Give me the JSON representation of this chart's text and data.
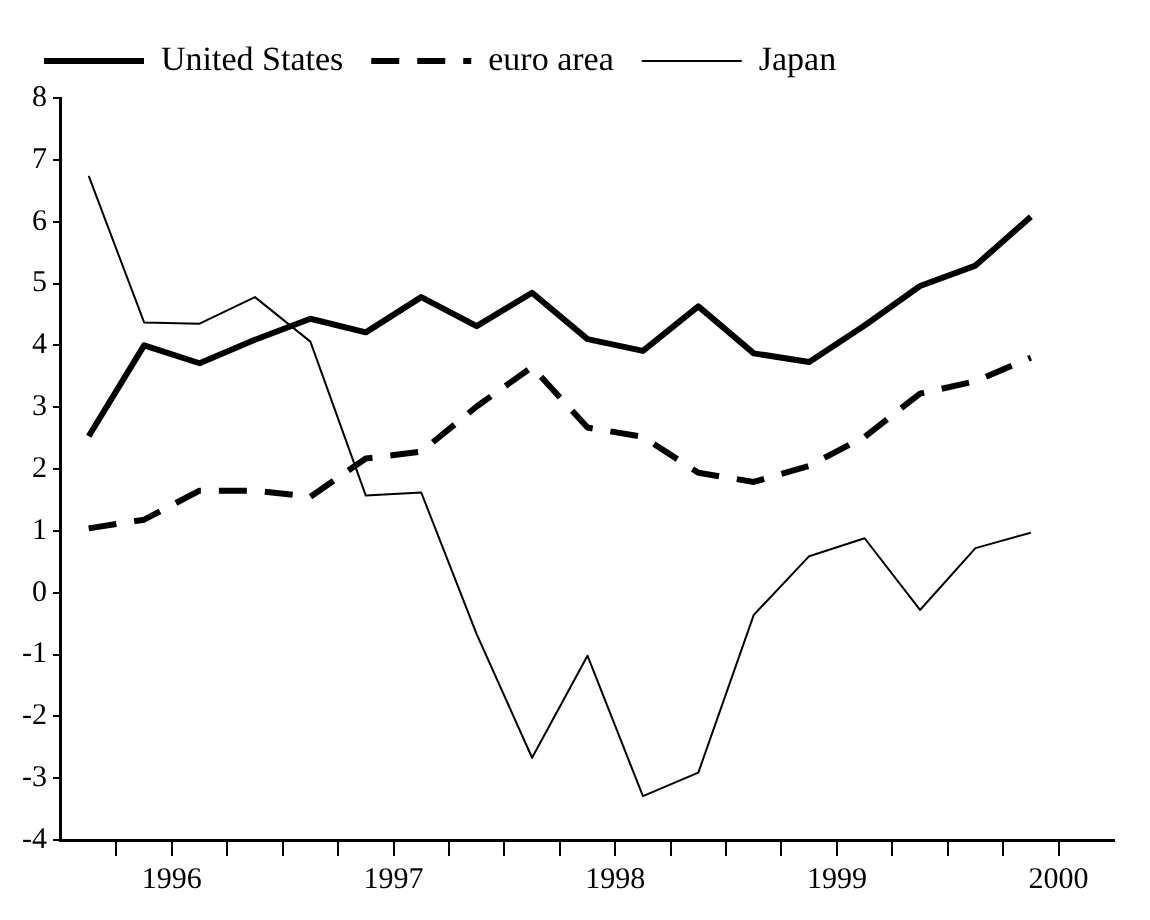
{
  "chart_data": {
    "type": "line",
    "x": [
      1996.125,
      1996.375,
      1996.625,
      1996.875,
      1997.125,
      1997.375,
      1997.625,
      1997.875,
      1998.125,
      1998.375,
      1998.625,
      1998.875,
      1999.125,
      1999.375,
      1999.625,
      1999.875,
      2000.125,
      2000.375
    ],
    "series": [
      {
        "name": "United States",
        "color": "#000000",
        "line_style": "solid",
        "values": [
          2.53,
          4.0,
          3.71,
          4.09,
          4.43,
          4.21,
          4.78,
          4.31,
          4.85,
          4.1,
          3.91,
          4.63,
          3.87,
          3.73,
          4.32,
          4.96,
          5.29,
          6.08
        ]
      },
      {
        "name": "euro area",
        "color": "#000000",
        "line_style": "dashed",
        "values": [
          1.04,
          1.18,
          1.65,
          1.65,
          1.55,
          2.17,
          2.28,
          3.01,
          3.65,
          2.67,
          2.52,
          1.94,
          1.79,
          2.05,
          2.52,
          3.22,
          3.42,
          3.8
        ]
      },
      {
        "name": "Japan",
        "color": "#000000",
        "line_style": "solid",
        "values": [
          6.74,
          4.37,
          4.35,
          4.78,
          4.06,
          1.57,
          1.62,
          -0.67,
          -2.67,
          -1.02,
          -3.29,
          -2.91,
          -0.36,
          0.59,
          0.88,
          -0.28,
          0.72,
          0.97
        ]
      }
    ],
    "xlim": [
      1996,
      2000.75
    ],
    "xticks": [
      {
        "value": 1996.25,
        "label": null
      },
      {
        "value": 1996.5,
        "label": "1996"
      },
      {
        "value": 1996.75,
        "label": null
      },
      {
        "value": 1997,
        "label": null
      },
      {
        "value": 1997.25,
        "label": null
      },
      {
        "value": 1997.5,
        "label": "1997"
      },
      {
        "value": 1997.75,
        "label": null
      },
      {
        "value": 1998,
        "label": null
      },
      {
        "value": 1998.25,
        "label": null
      },
      {
        "value": 1998.5,
        "label": "1998"
      },
      {
        "value": 1998.75,
        "label": null
      },
      {
        "value": 1999,
        "label": null
      },
      {
        "value": 1999.25,
        "label": null
      },
      {
        "value": 1999.5,
        "label": "1999"
      },
      {
        "value": 1999.75,
        "label": null
      },
      {
        "value": 2000,
        "label": null
      },
      {
        "value": 2000.25,
        "label": null
      },
      {
        "value": 2000.5,
        "label": "2000"
      }
    ],
    "ylim": [
      -4,
      8
    ],
    "yticks": [
      -4,
      -3,
      -2,
      -1,
      0,
      1,
      2,
      3,
      4,
      5,
      6,
      7,
      8
    ],
    "grid": false,
    "legend": "top left",
    "marker": "none"
  }
}
